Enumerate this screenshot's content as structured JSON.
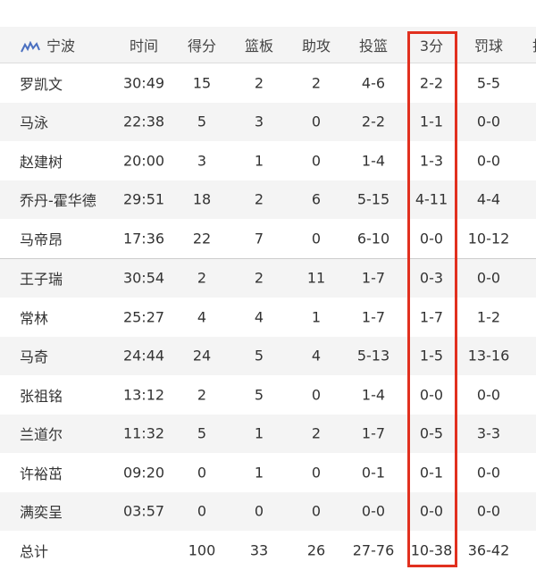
{
  "team": {
    "name": "宁波",
    "logo_icon": "team-logo-icon"
  },
  "columns": [
    "时间",
    "得分",
    "篮板",
    "助攻",
    "投篮",
    "3分",
    "罚球",
    "抢"
  ],
  "players": [
    [
      "罗凯文",
      "30:49",
      "15",
      "2",
      "2",
      "4-6",
      "2-2",
      "5-5"
    ],
    [
      "马泳",
      "22:38",
      "5",
      "3",
      "0",
      "2-2",
      "1-1",
      "0-0"
    ],
    [
      "赵建树",
      "20:00",
      "3",
      "1",
      "0",
      "1-4",
      "1-3",
      "0-0"
    ],
    [
      "乔丹-霍华德",
      "29:51",
      "18",
      "2",
      "6",
      "5-15",
      "4-11",
      "4-4"
    ],
    [
      "马帝昂",
      "17:36",
      "22",
      "7",
      "0",
      "6-10",
      "0-0",
      "10-12"
    ],
    [
      "王子瑞",
      "30:54",
      "2",
      "2",
      "11",
      "1-7",
      "0-3",
      "0-0"
    ],
    [
      "常林",
      "25:27",
      "4",
      "4",
      "1",
      "1-7",
      "1-7",
      "1-2"
    ],
    [
      "马奇",
      "24:44",
      "24",
      "5",
      "4",
      "5-13",
      "1-5",
      "13-16"
    ],
    [
      "张祖铭",
      "13:12",
      "2",
      "5",
      "0",
      "1-4",
      "0-0",
      "0-0"
    ],
    [
      "兰道尔",
      "11:32",
      "5",
      "1",
      "2",
      "1-7",
      "0-5",
      "3-3"
    ],
    [
      "许裕茁",
      "09:20",
      "0",
      "1",
      "0",
      "0-1",
      "0-1",
      "0-0"
    ],
    [
      "满奕呈",
      "03:57",
      "0",
      "0",
      "0",
      "0-0",
      "0-0",
      "0-0"
    ]
  ],
  "total": [
    "总计",
    "",
    "100",
    "33",
    "26",
    "27-76",
    "10-38",
    "36-42"
  ],
  "highlight_color": "#e1301f"
}
